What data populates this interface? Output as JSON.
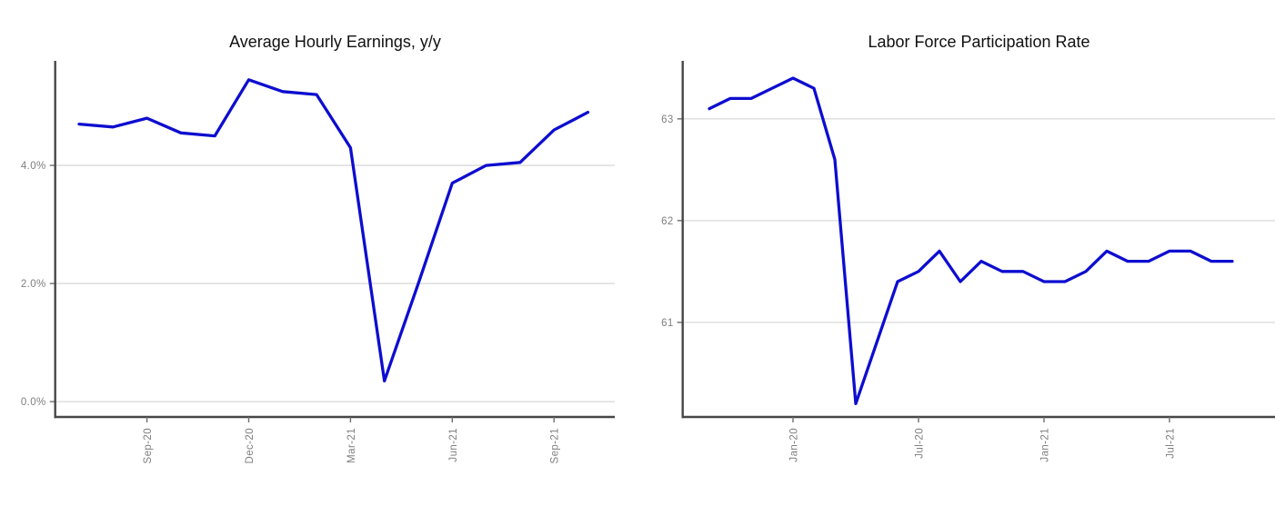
{
  "chart_data": [
    {
      "type": "line",
      "title": "Average Hourly Earnings, y/y",
      "x": [
        "Jul-20",
        "Aug-20",
        "Sep-20",
        "Oct-20",
        "Nov-20",
        "Dec-20",
        "Jan-21",
        "Feb-21",
        "Mar-21",
        "Apr-21",
        "May-21",
        "Jun-21",
        "Jul-21",
        "Aug-21",
        "Sep-21",
        "Oct-21"
      ],
      "values": [
        4.7,
        4.65,
        4.8,
        4.55,
        4.5,
        5.45,
        5.25,
        5.2,
        4.3,
        0.35,
        2.0,
        3.7,
        4.0,
        4.05,
        4.6,
        4.9
      ],
      "xlabel": "",
      "ylabel": "",
      "ylim": [
        -0.26,
        5.77
      ],
      "yticks": [
        {
          "value": 0,
          "label": "0.0%"
        },
        {
          "value": 2,
          "label": "2.0%"
        },
        {
          "value": 4,
          "label": "4.0%"
        }
      ],
      "xticks": [
        {
          "index": 2,
          "label": "Sep-20"
        },
        {
          "index": 5,
          "label": "Dec-20"
        },
        {
          "index": 8,
          "label": "Mar-21"
        },
        {
          "index": 11,
          "label": "Jun-21"
        },
        {
          "index": 14,
          "label": "Sep-21"
        }
      ],
      "grid": "horizontal",
      "legend": "none"
    },
    {
      "type": "line",
      "title": "Labor Force Participation Rate",
      "x": [
        "Sep-19",
        "Oct-19",
        "Nov-19",
        "Dec-19",
        "Jan-20",
        "Feb-20",
        "Mar-20",
        "Apr-20",
        "May-20",
        "Jun-20",
        "Jul-20",
        "Aug-20",
        "Sep-20",
        "Oct-20",
        "Nov-20",
        "Dec-20",
        "Jan-21",
        "Feb-21",
        "Mar-21",
        "Apr-21",
        "May-21",
        "Jun-21",
        "Jul-21",
        "Aug-21",
        "Sep-21",
        "Oct-21"
      ],
      "values": [
        63.1,
        63.2,
        63.2,
        63.3,
        63.4,
        63.3,
        62.6,
        60.2,
        60.8,
        61.4,
        61.5,
        61.7,
        61.4,
        61.6,
        61.5,
        61.5,
        61.4,
        61.4,
        61.5,
        61.7,
        61.6,
        61.6,
        61.7,
        61.7,
        61.6,
        61.6
      ],
      "xlabel": "",
      "ylabel": "",
      "ylim": [
        60.07,
        63.57
      ],
      "yticks": [
        {
          "value": 61,
          "label": "61"
        },
        {
          "value": 62,
          "label": "62"
        },
        {
          "value": 63,
          "label": "63"
        }
      ],
      "xticks": [
        {
          "index": 4,
          "label": "Jan-20"
        },
        {
          "index": 10,
          "label": "Jul-20"
        },
        {
          "index": 16,
          "label": "Jan-21"
        },
        {
          "index": 22,
          "label": "Jul-21"
        }
      ],
      "grid": "horizontal",
      "legend": "none"
    }
  ],
  "colors": {
    "series_line": "#0d0dd0",
    "grid_line": "#d9d9d9",
    "axis_line": "#474747",
    "tick_mark": "#6e6e6e",
    "tick_label": "#7f7f7f",
    "title_text": "#111111",
    "background": "#ffffff"
  }
}
